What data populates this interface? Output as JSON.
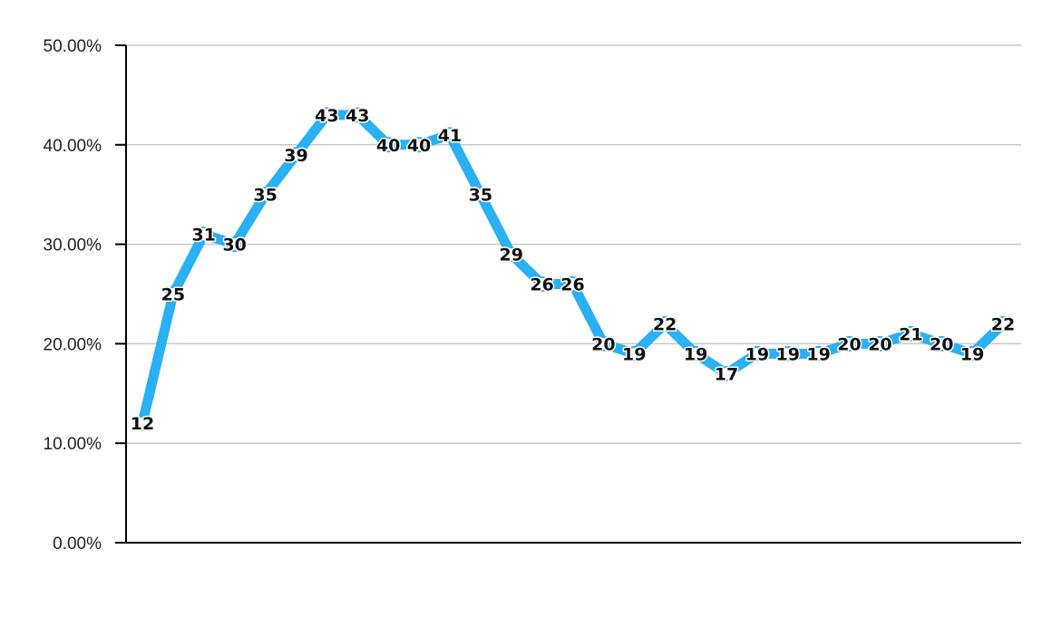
{
  "chart_data": {
    "type": "line",
    "title": "",
    "xlabel": "",
    "ylabel": "",
    "ylim": [
      0,
      50
    ],
    "yticks": [
      0,
      10,
      20,
      30,
      40,
      50
    ],
    "ytick_labels": [
      "0.00%",
      "10.00%",
      "20.00%",
      "30.00%",
      "40.00%",
      "50.00%"
    ],
    "grid": true,
    "legend": "none",
    "series_color": "#29B0F5",
    "series": [
      {
        "values": [
          12,
          25,
          31,
          30,
          35,
          39,
          43,
          43,
          40,
          40,
          41,
          35,
          29,
          26,
          26,
          20,
          19,
          22,
          19,
          17,
          19,
          19,
          19,
          20,
          20,
          21,
          20,
          19,
          22
        ],
        "labels": [
          "12",
          "25",
          "31",
          "30",
          "35",
          "39",
          "43",
          "43",
          "40",
          "40",
          "41",
          "35",
          "29",
          "26",
          "26",
          "20",
          "19",
          "22",
          "19",
          "17",
          "19",
          "19",
          "19",
          "20",
          "20",
          "21",
          "20",
          "19",
          "22"
        ]
      }
    ]
  }
}
